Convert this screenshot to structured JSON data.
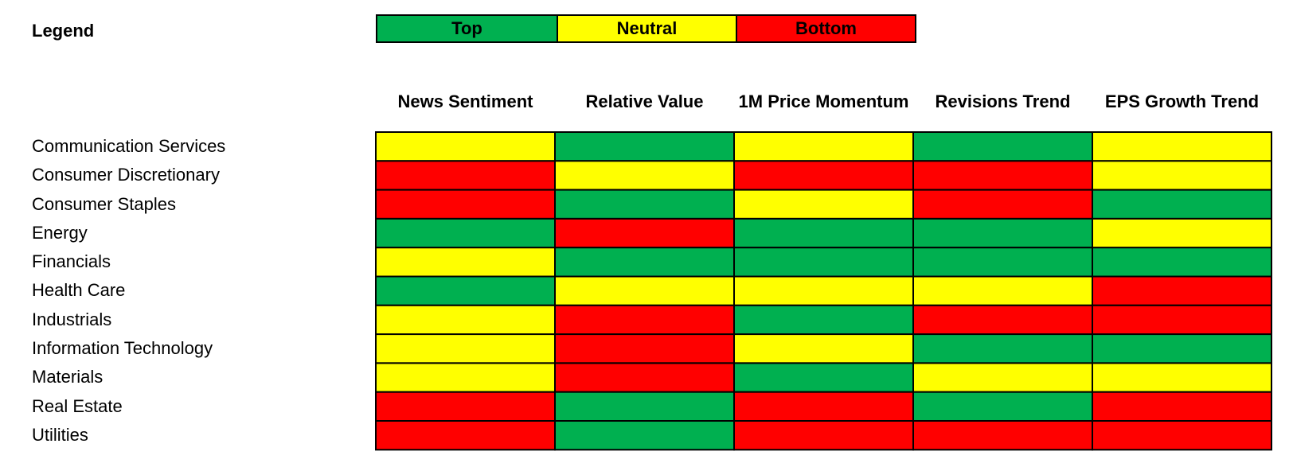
{
  "legend": {
    "title": "Legend",
    "items": [
      {
        "label": "Top",
        "color": "#00B050"
      },
      {
        "label": "Neutral",
        "color": "#FFFF00"
      },
      {
        "label": "Bottom",
        "color": "#FF0000"
      }
    ]
  },
  "chart_data": {
    "type": "heatmap",
    "columns": [
      "News Sentiment",
      "Relative Value",
      "1M Price Momentum",
      "Revisions Trend",
      "EPS Growth Trend"
    ],
    "rows": [
      "Communication Services",
      "Consumer Discretionary",
      "Consumer Staples",
      "Energy",
      "Financials",
      "Health Care",
      "Industrials",
      "Information Technology",
      "Materials",
      "Real Estate",
      "Utilities"
    ],
    "values": [
      [
        "Neutral",
        "Top",
        "Neutral",
        "Top",
        "Neutral"
      ],
      [
        "Bottom",
        "Neutral",
        "Bottom",
        "Bottom",
        "Neutral"
      ],
      [
        "Bottom",
        "Top",
        "Neutral",
        "Bottom",
        "Top"
      ],
      [
        "Top",
        "Bottom",
        "Top",
        "Top",
        "Neutral"
      ],
      [
        "Neutral",
        "Top",
        "Top",
        "Top",
        "Top"
      ],
      [
        "Top",
        "Neutral",
        "Neutral",
        "Neutral",
        "Bottom"
      ],
      [
        "Neutral",
        "Bottom",
        "Top",
        "Bottom",
        "Bottom"
      ],
      [
        "Neutral",
        "Bottom",
        "Neutral",
        "Top",
        "Top"
      ],
      [
        "Neutral",
        "Bottom",
        "Top",
        "Neutral",
        "Neutral"
      ],
      [
        "Bottom",
        "Top",
        "Bottom",
        "Top",
        "Bottom"
      ],
      [
        "Bottom",
        "Top",
        "Bottom",
        "Bottom",
        "Bottom"
      ]
    ],
    "category_colors": {
      "Top": "#00B050",
      "Neutral": "#FFFF00",
      "Bottom": "#FF0000"
    }
  }
}
